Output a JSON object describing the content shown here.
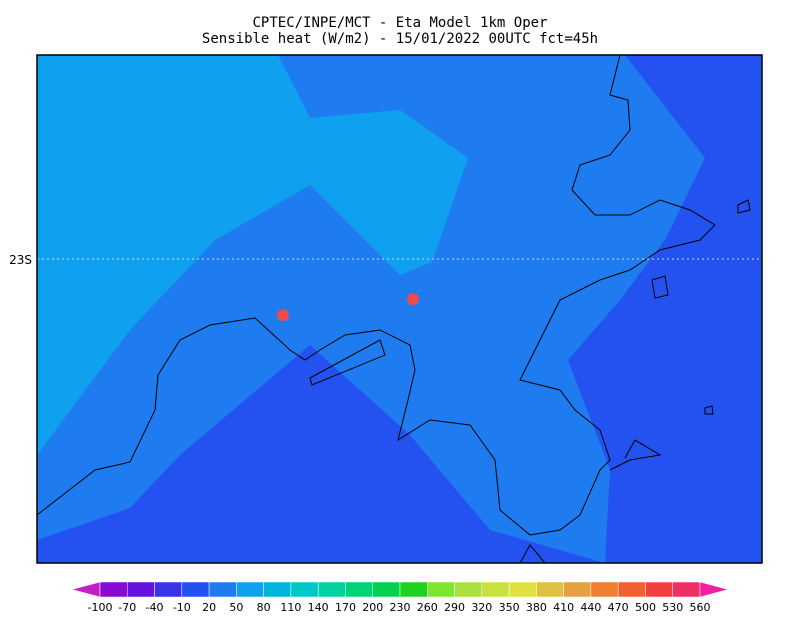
{
  "header": {
    "line1": "CPTEC/INPE/MCT -   Eta Model 1km Oper",
    "line2": "Sensible heat (W/m2) - 15/01/2022 00UTC fct=45h"
  },
  "map": {
    "lat_label": "23S"
  },
  "colorbar": {
    "levels": [
      -100,
      -70,
      -40,
      -10,
      20,
      50,
      80,
      110,
      140,
      170,
      200,
      230,
      260,
      290,
      320,
      350,
      380,
      410,
      440,
      470,
      500,
      530,
      560
    ],
    "colors": [
      "#c41ec8",
      "#8a0ad2",
      "#6414dc",
      "#3c32e6",
      "#2450f0",
      "#1e7cf0",
      "#10a0f0",
      "#00b4dc",
      "#00c8c8",
      "#00d2a0",
      "#00d278",
      "#00d250",
      "#1ed21e",
      "#7ce630",
      "#a8e040",
      "#c8e040",
      "#e0e040",
      "#e0c040",
      "#e6a040",
      "#f08030",
      "#f06030",
      "#f04040",
      "#f03064",
      "#f01ea0"
    ]
  }
}
